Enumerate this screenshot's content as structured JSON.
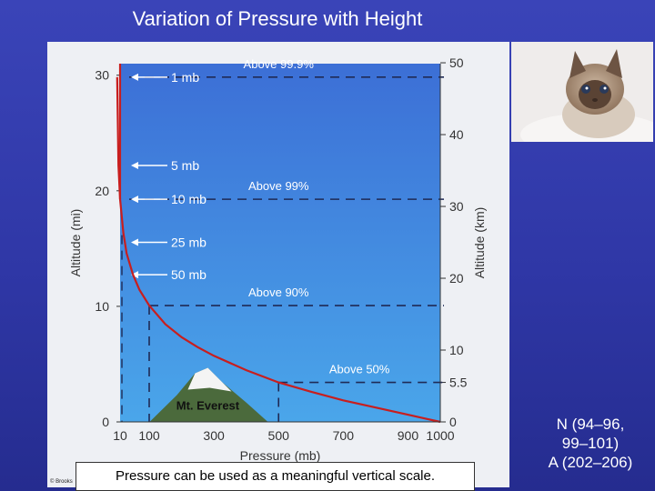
{
  "slide": {
    "title": "Variation of Pressure with Height",
    "caption": "Pressure can be used as a meaningful vertical scale.",
    "copyright": "© Brooks",
    "references": [
      "N (94–96,",
      "99–101)",
      "A (202–206)"
    ]
  },
  "colors": {
    "background": "#2f37a6",
    "sky_top": "#3c6fd6",
    "sky_bottom": "#4aa6ea",
    "curve": "#c81e1e",
    "dashes": "#1f2a55"
  },
  "chart_data": {
    "type": "line",
    "xlabel": "Pressure (mb)",
    "ylabel": "Altitude (mi)",
    "y2label": "Altitude (km)",
    "x_ticks": [
      "10",
      "100",
      "300",
      "500",
      "700",
      "900",
      "1000"
    ],
    "y_left_ticks": [
      "0",
      "10",
      "20",
      "30"
    ],
    "y_right_ticks": [
      "0",
      "5.5",
      "10",
      "20",
      "30",
      "40",
      "50"
    ],
    "x_ticks_values": [
      10,
      100,
      300,
      500,
      700,
      900,
      1000
    ],
    "y_left_values": [
      0,
      10,
      20,
      30
    ],
    "y_right_values_km": [
      0,
      5.5,
      10,
      20,
      30,
      40,
      50
    ],
    "xlim": [
      10,
      1000
    ],
    "ylim_mi": [
      0,
      31
    ],
    "series": [
      {
        "x_mb": [
          1000,
          950,
          900,
          800,
          700,
          600,
          500,
          400,
          300,
          250,
          200,
          150,
          100,
          70,
          50,
          30,
          25,
          20,
          10,
          5,
          1
        ],
        "y_km": [
          0,
          0.5,
          1.0,
          2.0,
          3.0,
          4.2,
          5.5,
          7.2,
          9.2,
          10.4,
          11.8,
          13.6,
          16.2,
          18.4,
          20.5,
          23.5,
          25.0,
          26.3,
          31.0,
          35.7,
          48.0
        ]
      }
    ],
    "pressure_markers": [
      {
        "label": "1 mb",
        "km": 48.0
      },
      {
        "label": "5 mb",
        "km": 35.7
      },
      {
        "label": "10 mb",
        "km": 31.0
      },
      {
        "label": "25 mb",
        "km": 25.0
      },
      {
        "label": "50 mb",
        "km": 20.5
      }
    ],
    "fraction_annotations": [
      {
        "label": "Above 99.9%",
        "km": 48.0,
        "x_mb": 500
      },
      {
        "label": "Above 99%",
        "km": 31.0,
        "x_mb": 500
      },
      {
        "label": "Above 90%",
        "km": 16.2,
        "x_mb": 500
      },
      {
        "label": "Above 50%",
        "km": 5.5,
        "x_mb": 750
      }
    ],
    "mountain_label": "Mt. Everest",
    "mountain_height_km": 8.8
  }
}
